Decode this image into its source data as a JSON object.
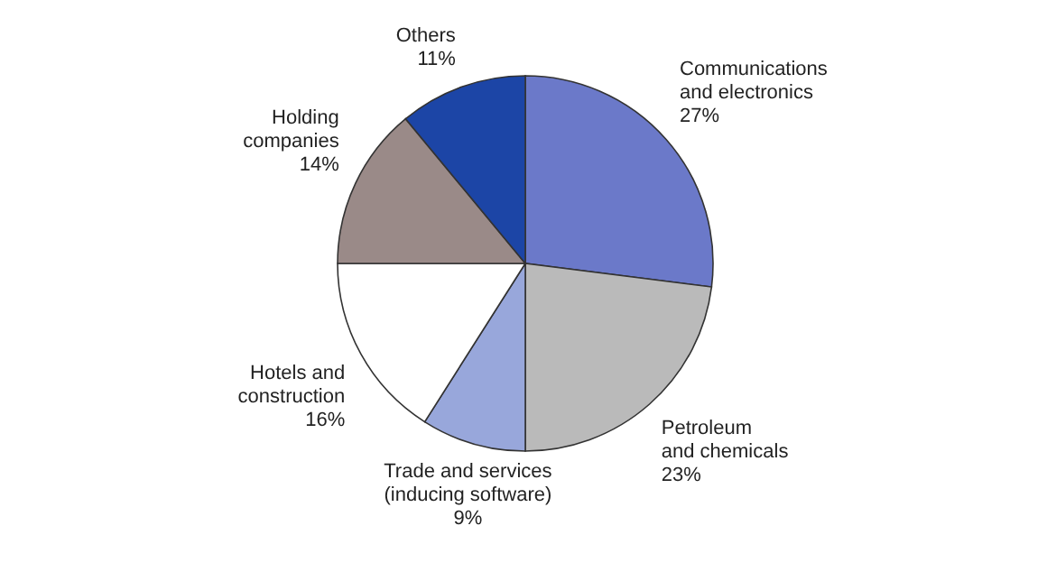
{
  "chart_data": {
    "type": "pie",
    "categories": [
      "Communications\nand electronics",
      "Petroleum\nand chemicals",
      "Trade and services\n(inducing software)",
      "Hotels and\nconstruction",
      "Holding\ncompanies",
      "Others"
    ],
    "values": [
      27,
      23,
      9,
      16,
      14,
      11
    ],
    "value_labels": [
      "27%",
      "23%",
      "9%",
      "16%",
      "14%",
      "11%"
    ],
    "colors": [
      "#6b79c9",
      "#bababa",
      "#98a7db",
      "#ffffff",
      "#9a8a88",
      "#1c45a6"
    ]
  }
}
